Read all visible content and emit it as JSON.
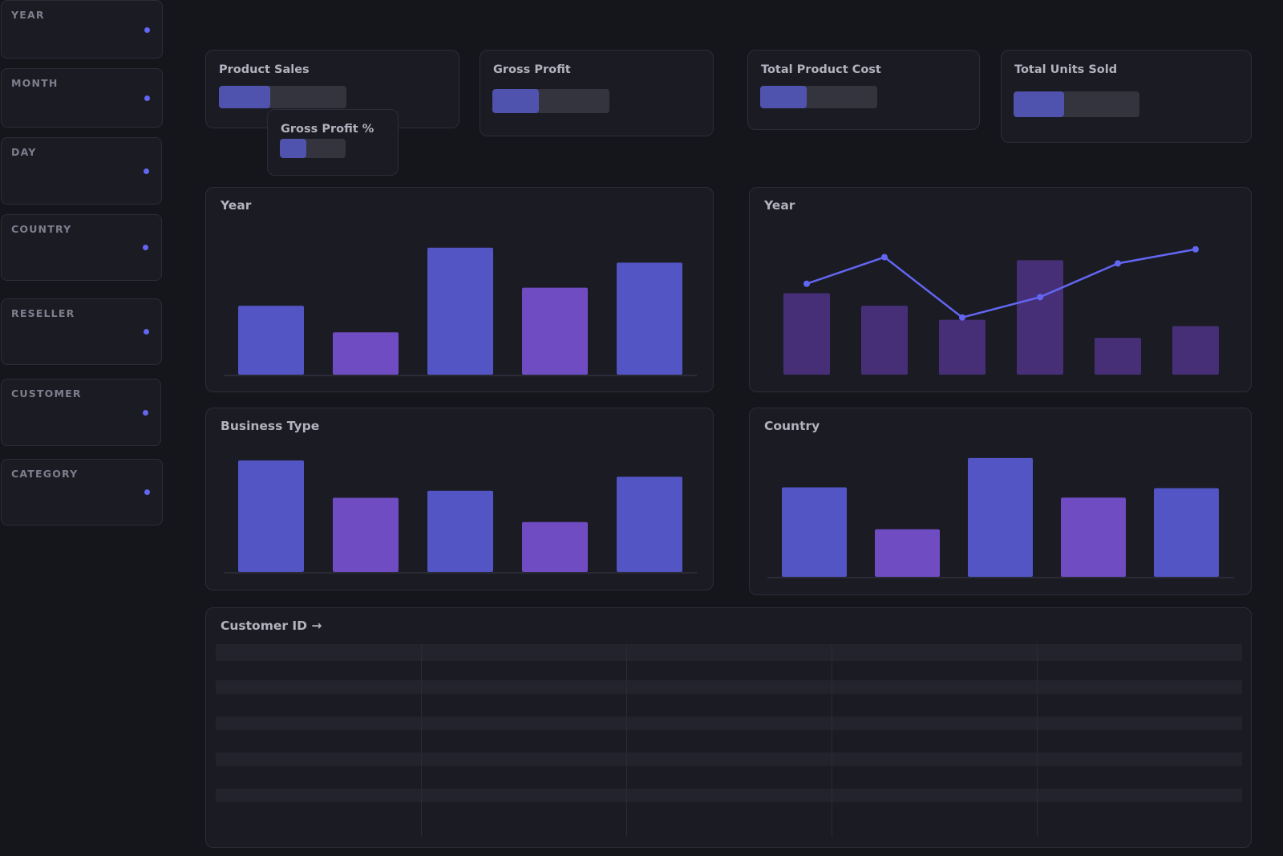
{
  "sidebar": {
    "filters": [
      {
        "label": "YEAR"
      },
      {
        "label": "MONTH"
      },
      {
        "label": "DAY"
      },
      {
        "label": "COUNTRY"
      },
      {
        "label": "RESELLER"
      },
      {
        "label": "CUSTOMER"
      },
      {
        "label": "CATEGORY"
      }
    ]
  },
  "kpis": [
    {
      "title": "Product Sales",
      "progress": 0.4
    },
    {
      "title": "Gross Profit %",
      "progress": 0.4
    },
    {
      "title": "Gross Profit",
      "progress": 0.4
    },
    {
      "title": "Total Product Cost",
      "progress": 0.4
    },
    {
      "title": "Total Units Sold",
      "progress": 0.4
    }
  ],
  "colors": {
    "bar_primary": "#5255c3",
    "bar_secondary": "#6f4cc2",
    "bar_muted": "#472f78",
    "line": "#6366f1",
    "accent_dot": "#6366f1"
  },
  "cards": {
    "year_bar_title": "Year",
    "year_combo_title": "Year",
    "business_type_title": "Business Type",
    "country_title": "Country",
    "table_title": "Customer ID →"
  },
  "chart_data": [
    {
      "type": "bar",
      "title": "Year",
      "values": [
        88,
        54,
        162,
        111,
        143
      ],
      "ylim": [
        0,
        170
      ]
    },
    {
      "type": "bar+line",
      "title": "Year",
      "bar_values": [
        104,
        88,
        70,
        146,
        47,
        62
      ],
      "line_values": [
        116,
        150,
        73,
        99,
        142,
        160
      ],
      "ylim": [
        0,
        170
      ]
    },
    {
      "type": "bar",
      "title": "Business Type",
      "values": [
        143,
        95,
        104,
        64,
        122
      ],
      "ylim": [
        0,
        150
      ]
    },
    {
      "type": "bar",
      "title": "Country",
      "values": [
        113,
        60,
        150,
        100,
        112
      ],
      "ylim": [
        0,
        155
      ]
    }
  ],
  "table": {
    "columns": 5,
    "rows": 9
  }
}
